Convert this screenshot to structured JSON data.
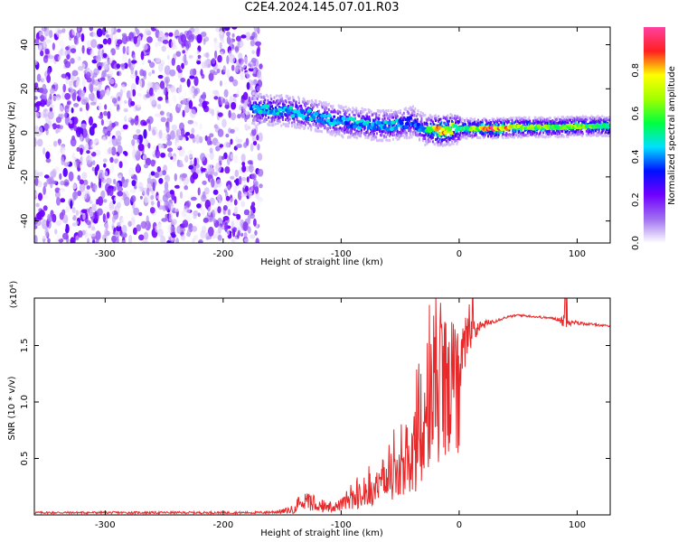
{
  "title": "C2E4.2024.145.07.01.R03",
  "colors": {
    "snr_line": "#e8292b",
    "text": "#000000",
    "background": "#ffffff"
  },
  "chart_data": [
    {
      "type": "heatmap",
      "title": "C2E4.2024.145.07.01.R03",
      "xlabel": "Height of straight line (km)",
      "ylabel": "Frequency (Hz)",
      "xlim": [
        -360,
        128
      ],
      "ylim": [
        -50,
        48
      ],
      "x_ticks": [
        "-300",
        "-200",
        "-100",
        "0",
        "100"
      ],
      "x_tick_values": [
        -300,
        -200,
        -100,
        0,
        100
      ],
      "y_ticks": [
        "-40",
        "-20",
        "0",
        "20",
        "40"
      ],
      "y_tick_values": [
        -40,
        -20,
        0,
        20,
        40
      ],
      "grid": false,
      "colorbar": {
        "label": "Normalized spectral amplitude",
        "range": [
          0.0,
          1.0
        ],
        "ticks": [
          "0.0",
          "0.2",
          "0.4",
          "0.6",
          "0.8"
        ],
        "tick_values": [
          0.0,
          0.2,
          0.4,
          0.6,
          0.8
        ],
        "colormap": [
          "#ffffff",
          "#a070f0",
          "#7000ff",
          "#0010ff",
          "#00e0ff",
          "#00ff40",
          "#a0ff00",
          "#ffff00",
          "#ff2020",
          "#ff40a0"
        ]
      },
      "noise_region": {
        "x": [
          -360,
          -168
        ],
        "y": [
          -50,
          48
        ],
        "amplitude": [
          0.0,
          0.25
        ]
      },
      "signal_ridge": [
        {
          "x": -176,
          "freq": 11,
          "peak": 0.38
        },
        {
          "x": -165,
          "freq": 10.5,
          "peak": 0.48
        },
        {
          "x": -150,
          "freq": 10,
          "peak": 0.42
        },
        {
          "x": -140,
          "freq": 9.5,
          "peak": 0.45
        },
        {
          "x": -120,
          "freq": 7.5,
          "peak": 0.43
        },
        {
          "x": -100,
          "freq": 5,
          "peak": 0.4
        },
        {
          "x": -80,
          "freq": 4,
          "peak": 0.45
        },
        {
          "x": -60,
          "freq": 3,
          "peak": 0.44
        },
        {
          "x": -40,
          "freq": 5,
          "peak": 0.38
        },
        {
          "x": -30,
          "freq": 1.5,
          "peak": 0.4
        },
        {
          "x": -15,
          "freq": 1,
          "peak": 0.9
        },
        {
          "x": 0,
          "freq": 2,
          "peak": 0.5
        },
        {
          "x": 10,
          "freq": 2,
          "peak": 0.62
        },
        {
          "x": 30,
          "freq": 2,
          "peak": 0.9
        },
        {
          "x": 50,
          "freq": 2.5,
          "peak": 0.65
        },
        {
          "x": 80,
          "freq": 2.5,
          "peak": 0.58
        },
        {
          "x": 100,
          "freq": 3,
          "peak": 0.62
        },
        {
          "x": 128,
          "freq": 3,
          "peak": 0.55
        }
      ]
    },
    {
      "type": "line",
      "xlabel": "Height of straight line (km)",
      "ylabel": "SNR (10 * v/v)",
      "scale_note": "(x10⁴)",
      "xlim": [
        -360,
        128
      ],
      "ylim": [
        0,
        1.92
      ],
      "x_ticks": [
        "-300",
        "-200",
        "-100",
        "0",
        "100"
      ],
      "x_tick_values": [
        -300,
        -200,
        -100,
        0,
        100
      ],
      "y_ticks": [
        "0.5",
        "1.0",
        "1.5"
      ],
      "y_tick_values": [
        0.5,
        1.0,
        1.5
      ],
      "grid": false,
      "series": [
        {
          "x": [
            -360,
            -300,
            -250,
            -200,
            -170,
            -150,
            -140,
            -135,
            -130,
            -125,
            -120,
            -115,
            -110,
            -105,
            -100,
            -95,
            -90,
            -85,
            -80,
            -75,
            -70,
            -65,
            -60,
            -55,
            -50,
            -45,
            -40,
            -35,
            -30,
            -28,
            -25,
            -22,
            -20,
            -18,
            -15,
            -12,
            -10,
            -8,
            -5,
            -2,
            0,
            2,
            5,
            8,
            10,
            12,
            15,
            20,
            25,
            30,
            40,
            50,
            60,
            70,
            80,
            85,
            88,
            90,
            92,
            95,
            100,
            110,
            120,
            128
          ],
          "y": [
            0.02,
            0.02,
            0.02,
            0.02,
            0.02,
            0.03,
            0.05,
            0.08,
            0.12,
            0.08,
            0.1,
            0.06,
            0.07,
            0.08,
            0.1,
            0.12,
            0.15,
            0.16,
            0.18,
            0.2,
            0.25,
            0.3,
            0.32,
            0.35,
            0.38,
            0.42,
            0.5,
            0.6,
            0.7,
            0.9,
            1.0,
            1.1,
            1.2,
            1.3,
            1.25,
            1.15,
            1.05,
            1.15,
            1.2,
            1.3,
            1.35,
            1.45,
            1.5,
            1.55,
            1.6,
            1.62,
            1.65,
            1.68,
            1.7,
            1.72,
            1.75,
            1.77,
            1.76,
            1.75,
            1.74,
            1.73,
            1.72,
            1.72,
            1.71,
            1.7,
            1.7,
            1.69,
            1.68,
            1.67
          ],
          "noise_amplitude": [
            0.01,
            0.01,
            0.01,
            0.01,
            0.01,
            0.02,
            0.04,
            0.06,
            0.08,
            0.06,
            0.06,
            0.05,
            0.06,
            0.07,
            0.08,
            0.1,
            0.12,
            0.13,
            0.15,
            0.17,
            0.2,
            0.24,
            0.26,
            0.3,
            0.33,
            0.38,
            0.45,
            0.55,
            0.6,
            0.65,
            0.6,
            0.55,
            0.55,
            0.5,
            0.5,
            0.45,
            0.45,
            0.45,
            0.4,
            0.4,
            0.35,
            0.3,
            0.25,
            0.2,
            0.12,
            0.1,
            0.06,
            0.04,
            0.03,
            0.02,
            0.01,
            0.01,
            0.01,
            0.01,
            0.01,
            0.02,
            0.06,
            0.08,
            0.05,
            0.02,
            0.02,
            0.01,
            0.01,
            0.01
          ]
        }
      ]
    }
  ]
}
